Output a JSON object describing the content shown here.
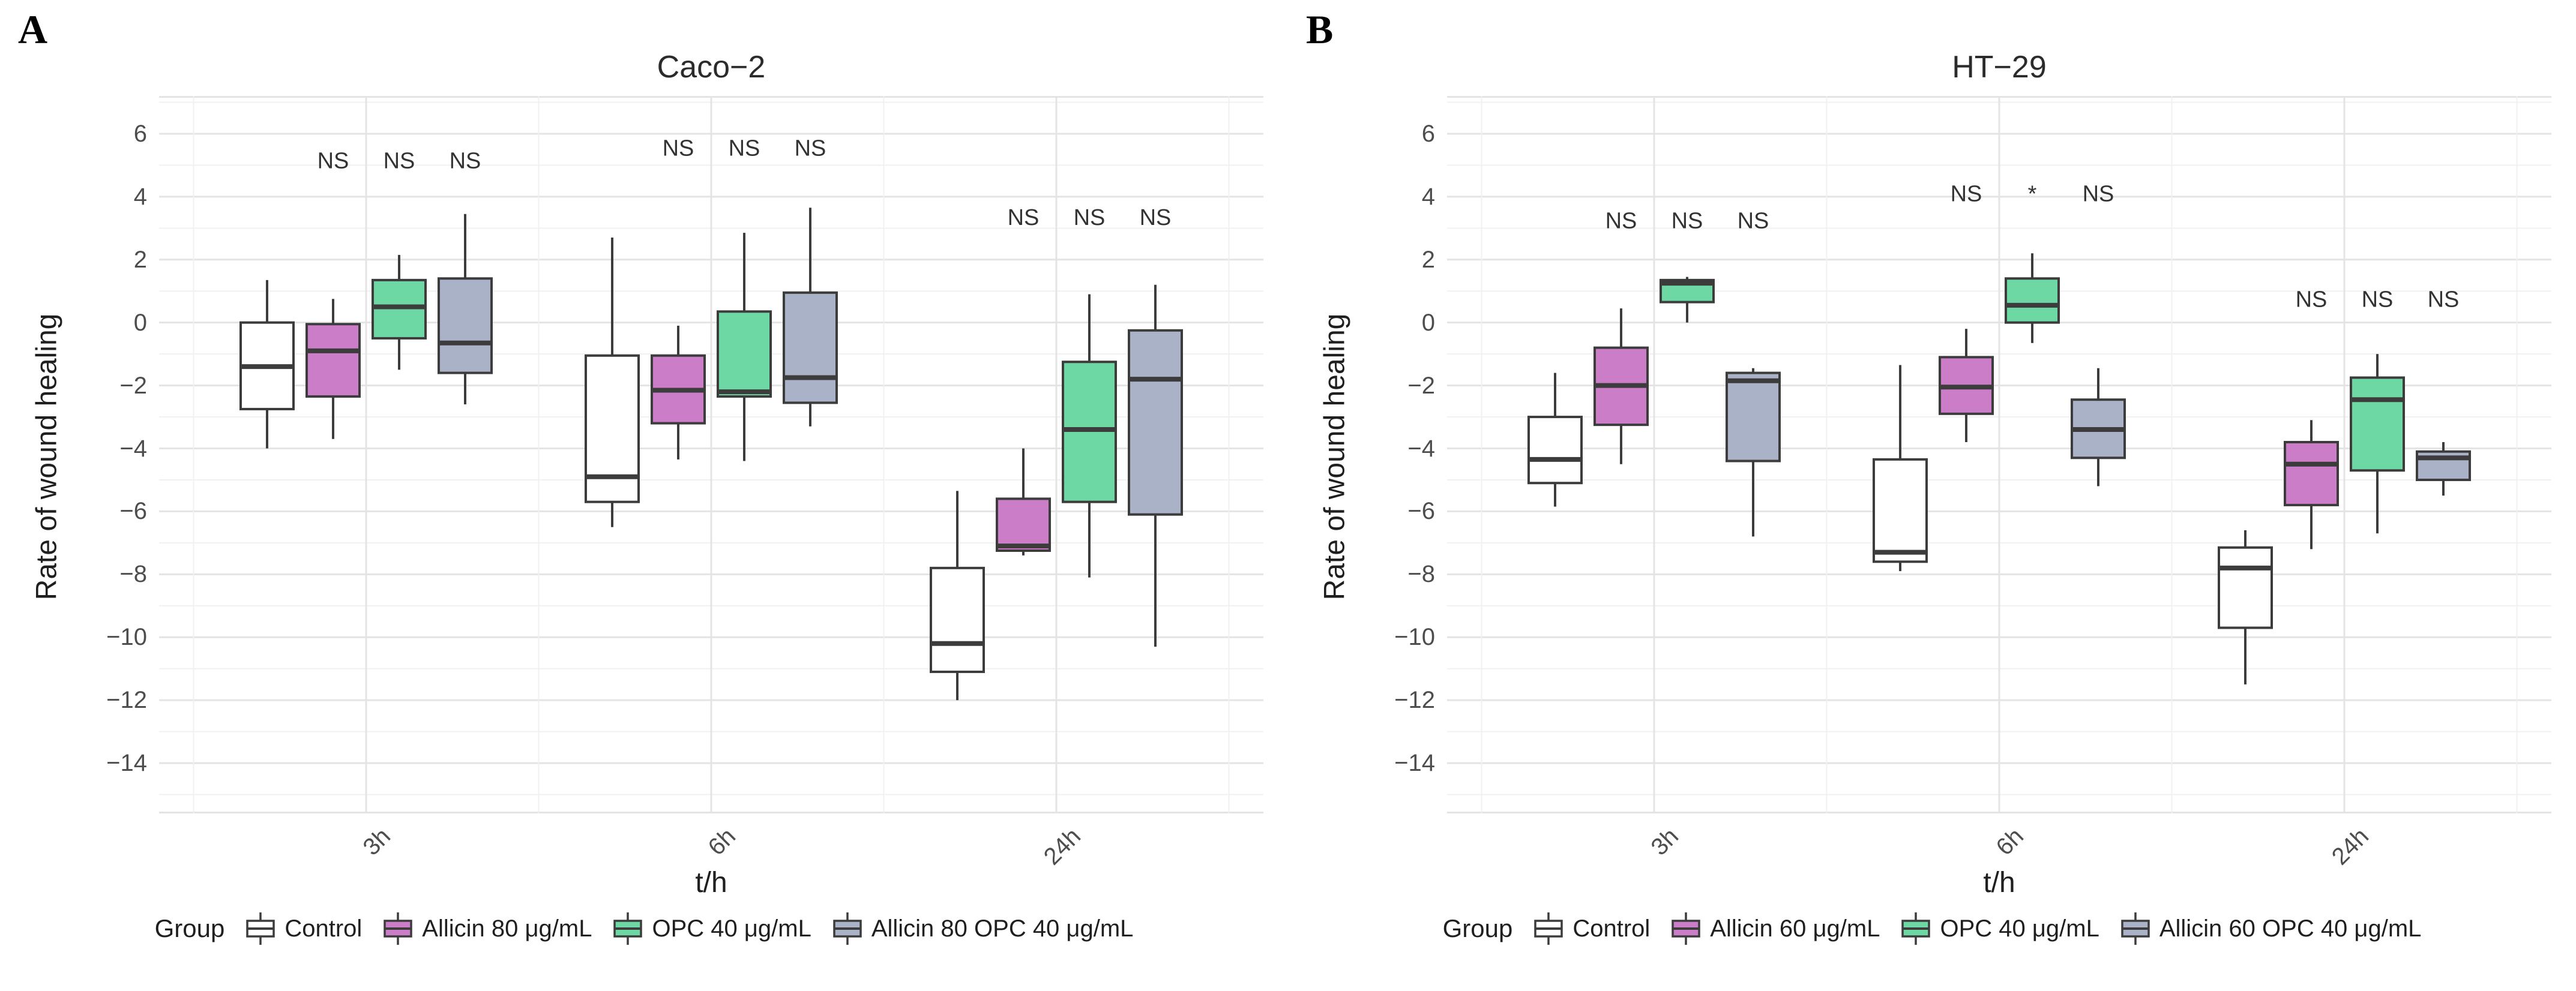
{
  "chart_data": [
    {
      "type": "box",
      "panel_label": "A",
      "title": "Caco−2",
      "ylabel": "Rate of wound healing",
      "xlabel": "t/h",
      "legend_title": "Group",
      "categories": [
        "3h",
        "6h",
        "24h"
      ],
      "ylim": [
        -15.6,
        7.2
      ],
      "ytick_values": [
        6,
        4,
        2,
        0,
        -2,
        -4,
        -6,
        -8,
        -10,
        -12,
        -14
      ],
      "ytick_labels": [
        "6",
        "4",
        "2",
        "0",
        "−2",
        "−4",
        "−6",
        "−8",
        "−10",
        "−12",
        "−14"
      ],
      "grid": true,
      "legend_position": "bottom",
      "series": [
        {
          "name": "Control",
          "color": "#FFFFFF",
          "boxes": [
            {
              "low": -4.0,
              "q1": -2.75,
              "median": -1.4,
              "q3": 0.0,
              "high": 1.35
            },
            {
              "low": -6.5,
              "q1": -5.7,
              "median": -4.9,
              "q3": -1.05,
              "high": 2.7
            },
            {
              "low": -12.0,
              "q1": -11.1,
              "median": -10.2,
              "q3": -7.8,
              "high": -5.35
            }
          ]
        },
        {
          "name": "Allicin 80 μg/mL",
          "color": "#CC7DC8",
          "boxes": [
            {
              "low": -3.7,
              "q1": -2.35,
              "median": -0.9,
              "q3": -0.05,
              "high": 0.75
            },
            {
              "low": -4.35,
              "q1": -3.2,
              "median": -2.15,
              "q3": -1.05,
              "high": -0.1
            },
            {
              "low": -7.4,
              "q1": -7.25,
              "median": -7.1,
              "q3": -5.6,
              "high": -4.0
            }
          ]
        },
        {
          "name": "OPC 40 μg/mL",
          "color": "#6ED8A5",
          "boxes": [
            {
              "low": -1.5,
              "q1": -0.5,
              "median": 0.5,
              "q3": 1.35,
              "high": 2.15
            },
            {
              "low": -4.4,
              "q1": -2.35,
              "median": -2.2,
              "q3": 0.35,
              "high": 2.85
            },
            {
              "low": -8.1,
              "q1": -5.7,
              "median": -3.4,
              "q3": -1.25,
              "high": 0.9
            }
          ]
        },
        {
          "name": "Allicin 80 OPC 40 μg/mL",
          "color": "#A9B2C7",
          "boxes": [
            {
              "low": -2.6,
              "q1": -1.6,
              "median": -0.65,
              "q3": 1.4,
              "high": 3.45
            },
            {
              "low": -3.3,
              "q1": -2.55,
              "median": -1.75,
              "q3": 0.95,
              "high": 3.65
            },
            {
              "low": -10.3,
              "q1": -6.1,
              "median": -1.8,
              "q3": -0.25,
              "high": 1.2
            }
          ]
        }
      ],
      "significance": [
        {
          "time": "3h",
          "y": 4.9,
          "labels": [
            "NS",
            "NS",
            "NS"
          ]
        },
        {
          "time": "6h",
          "y": 5.3,
          "labels": [
            "NS",
            "NS",
            "NS"
          ]
        },
        {
          "time": "24h",
          "y": 3.1,
          "labels": [
            "NS",
            "NS",
            "NS"
          ]
        }
      ]
    },
    {
      "type": "box",
      "panel_label": "B",
      "title": "HT−29",
      "ylabel": "Rate of wound healing",
      "xlabel": "t/h",
      "legend_title": "Group",
      "categories": [
        "3h",
        "6h",
        "24h"
      ],
      "ylim": [
        -15.6,
        7.2
      ],
      "ytick_values": [
        6,
        4,
        2,
        0,
        -2,
        -4,
        -6,
        -8,
        -10,
        -12,
        -14
      ],
      "ytick_labels": [
        "6",
        "4",
        "2",
        "0",
        "−2",
        "−4",
        "−6",
        "−8",
        "−10",
        "−12",
        "−14"
      ],
      "grid": true,
      "legend_position": "bottom",
      "series": [
        {
          "name": "Control",
          "color": "#FFFFFF",
          "boxes": [
            {
              "low": -5.85,
              "q1": -5.1,
              "median": -4.35,
              "q3": -3.0,
              "high": -1.6
            },
            {
              "low": -7.9,
              "q1": -7.6,
              "median": -7.3,
              "q3": -4.35,
              "high": -1.35
            },
            {
              "low": -11.5,
              "q1": -9.7,
              "median": -7.8,
              "q3": -7.15,
              "high": -6.6
            }
          ]
        },
        {
          "name": "Allicin 60 μg/mL",
          "color": "#CC7DC8",
          "boxes": [
            {
              "low": -4.5,
              "q1": -3.25,
              "median": -2.0,
              "q3": -0.8,
              "high": 0.45
            },
            {
              "low": -3.8,
              "q1": -2.9,
              "median": -2.05,
              "q3": -1.1,
              "high": -0.2
            },
            {
              "low": -7.2,
              "q1": -5.8,
              "median": -4.5,
              "q3": -3.8,
              "high": -3.1
            }
          ]
        },
        {
          "name": "OPC 40 μg/mL",
          "color": "#6ED8A5",
          "boxes": [
            {
              "low": 0.0,
              "q1": 0.65,
              "median": 1.25,
              "q3": 1.35,
              "high": 1.45
            },
            {
              "low": -0.65,
              "q1": 0.0,
              "median": 0.55,
              "q3": 1.4,
              "high": 2.2
            },
            {
              "low": -6.7,
              "q1": -4.7,
              "median": -2.45,
              "q3": -1.75,
              "high": -1.0
            }
          ]
        },
        {
          "name": "Allicin 60 OPC 40 μg/mL",
          "color": "#A9B2C7",
          "boxes": [
            {
              "low": -6.8,
              "q1": -4.4,
              "median": -1.85,
              "q3": -1.6,
              "high": -1.45
            },
            {
              "low": -5.2,
              "q1": -4.3,
              "median": -3.4,
              "q3": -2.45,
              "high": -1.45
            },
            {
              "low": -5.5,
              "q1": -5.0,
              "median": -4.3,
              "q3": -4.1,
              "high": -3.8
            }
          ]
        }
      ],
      "significance": [
        {
          "time": "3h",
          "y": 3.0,
          "labels": [
            "NS",
            "NS",
            "NS"
          ]
        },
        {
          "time": "6h",
          "y": 3.85,
          "labels": [
            "NS",
            "*",
            "NS"
          ]
        },
        {
          "time": "24h",
          "y": 0.5,
          "labels": [
            "NS",
            "NS",
            "NS"
          ]
        }
      ]
    }
  ],
  "style": {
    "box_stroke": "#3C3C3C",
    "grid_major": "#E4E4E4",
    "grid_minor": "#F1F1F1",
    "tick_text": "#4D4D4D"
  }
}
